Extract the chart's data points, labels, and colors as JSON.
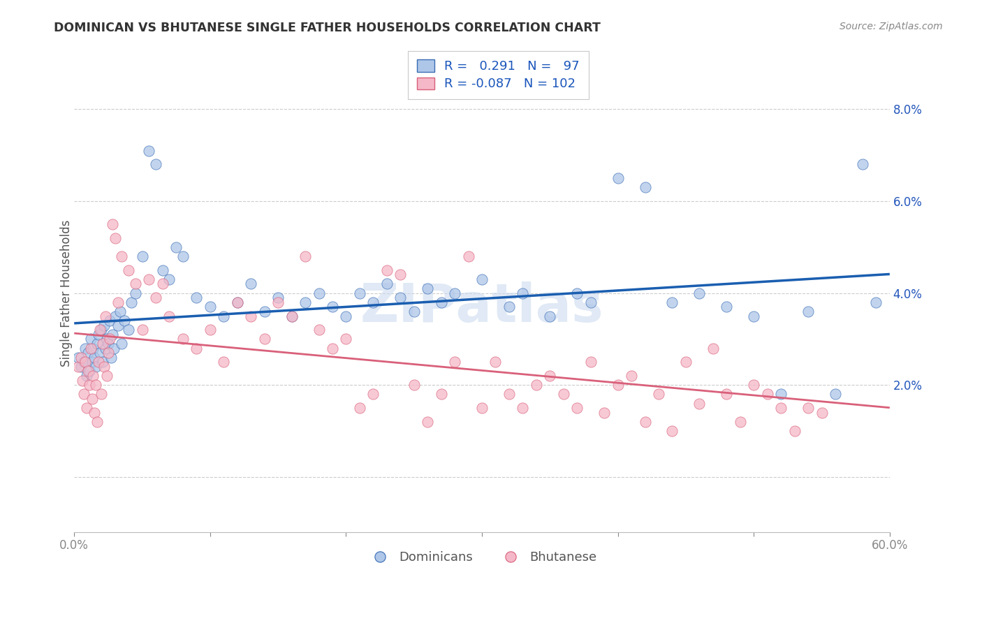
{
  "title": "DOMINICAN VS BHUTANESE SINGLE FATHER HOUSEHOLDS CORRELATION CHART",
  "source": "Source: ZipAtlas.com",
  "ylabel": "Single Father Households",
  "xlim": [
    0.0,
    60.0
  ],
  "ylim": [
    -1.2,
    9.2
  ],
  "ytick_vals": [
    0.0,
    2.0,
    4.0,
    6.0,
    8.0
  ],
  "ytick_labels": [
    "",
    "2.0%",
    "4.0%",
    "6.0%",
    "8.0%"
  ],
  "xtick_vals": [
    0,
    10,
    20,
    30,
    40,
    50,
    60
  ],
  "xtick_labels": [
    "0.0%",
    "",
    "",
    "",
    "",
    "",
    "60.0%"
  ],
  "dominican_R": 0.291,
  "dominican_N": 97,
  "bhutanese_R": -0.087,
  "bhutanese_N": 102,
  "blue_fill": "#aec6e8",
  "blue_edge": "#3a6db5",
  "pink_fill": "#f5b8c8",
  "pink_edge": "#d9607a",
  "blue_trend_color": "#1a5eb0",
  "pink_trend_color": "#d9607a",
  "watermark": "ZIPatlas",
  "legend_label_dominicans": "Dominicans",
  "legend_label_bhutanese": "Bhutanese",
  "grid_color": "#cccccc",
  "dominican_x": [
    0.3,
    0.5,
    0.7,
    0.8,
    0.9,
    1.0,
    1.1,
    1.2,
    1.3,
    1.4,
    1.5,
    1.6,
    1.7,
    1.8,
    1.9,
    2.0,
    2.1,
    2.2,
    2.3,
    2.4,
    2.5,
    2.6,
    2.7,
    2.8,
    2.9,
    3.0,
    3.2,
    3.4,
    3.5,
    3.7,
    4.0,
    4.2,
    4.5,
    5.0,
    5.5,
    6.0,
    6.5,
    7.0,
    7.5,
    8.0,
    9.0,
    10.0,
    11.0,
    12.0,
    13.0,
    14.0,
    15.0,
    16.0,
    17.0,
    18.0,
    19.0,
    20.0,
    21.0,
    22.0,
    23.0,
    24.0,
    25.0,
    26.0,
    27.0,
    28.0,
    30.0,
    32.0,
    33.0,
    35.0,
    37.0,
    38.0,
    40.0,
    42.0,
    44.0,
    46.0,
    48.0,
    50.0,
    52.0,
    54.0,
    56.0,
    58.0,
    59.0
  ],
  "dominican_y": [
    2.6,
    2.4,
    2.5,
    2.8,
    2.2,
    2.7,
    2.3,
    3.0,
    2.5,
    2.8,
    2.6,
    2.4,
    2.9,
    3.1,
    2.7,
    3.2,
    2.5,
    3.3,
    2.8,
    3.0,
    2.9,
    3.4,
    2.6,
    3.1,
    2.8,
    3.5,
    3.3,
    3.6,
    2.9,
    3.4,
    3.2,
    3.8,
    4.0,
    4.8,
    7.1,
    6.8,
    4.5,
    4.3,
    5.0,
    4.8,
    3.9,
    3.7,
    3.5,
    3.8,
    4.2,
    3.6,
    3.9,
    3.5,
    3.8,
    4.0,
    3.7,
    3.5,
    4.0,
    3.8,
    4.2,
    3.9,
    3.6,
    4.1,
    3.8,
    4.0,
    4.3,
    3.7,
    4.0,
    3.5,
    4.0,
    3.8,
    6.5,
    6.3,
    3.8,
    4.0,
    3.7,
    3.5,
    1.8,
    3.6,
    1.8,
    6.8,
    3.8
  ],
  "bhutanese_x": [
    0.3,
    0.5,
    0.6,
    0.7,
    0.8,
    0.9,
    1.0,
    1.1,
    1.2,
    1.3,
    1.4,
    1.5,
    1.6,
    1.7,
    1.8,
    1.9,
    2.0,
    2.1,
    2.2,
    2.3,
    2.4,
    2.5,
    2.6,
    2.8,
    3.0,
    3.2,
    3.5,
    4.0,
    4.5,
    5.0,
    5.5,
    6.0,
    6.5,
    7.0,
    8.0,
    9.0,
    10.0,
    11.0,
    12.0,
    13.0,
    14.0,
    15.0,
    16.0,
    17.0,
    18.0,
    19.0,
    20.0,
    21.0,
    22.0,
    23.0,
    24.0,
    25.0,
    26.0,
    27.0,
    28.0,
    29.0,
    30.0,
    31.0,
    32.0,
    33.0,
    34.0,
    35.0,
    36.0,
    37.0,
    38.0,
    39.0,
    40.0,
    41.0,
    42.0,
    43.0,
    44.0,
    45.0,
    46.0,
    47.0,
    48.0,
    49.0,
    50.0,
    51.0,
    52.0,
    53.0,
    54.0,
    55.0
  ],
  "bhutanese_y": [
    2.4,
    2.6,
    2.1,
    1.8,
    2.5,
    1.5,
    2.3,
    2.0,
    2.8,
    1.7,
    2.2,
    1.4,
    2.0,
    1.2,
    2.5,
    3.2,
    1.8,
    2.9,
    2.4,
    3.5,
    2.2,
    2.7,
    3.0,
    5.5,
    5.2,
    3.8,
    4.8,
    4.5,
    4.2,
    3.2,
    4.3,
    3.9,
    4.2,
    3.5,
    3.0,
    2.8,
    3.2,
    2.5,
    3.8,
    3.5,
    3.0,
    3.8,
    3.5,
    4.8,
    3.2,
    2.8,
    3.0,
    1.5,
    1.8,
    4.5,
    4.4,
    2.0,
    1.2,
    1.8,
    2.5,
    4.8,
    1.5,
    2.5,
    1.8,
    1.5,
    2.0,
    2.2,
    1.8,
    1.5,
    2.5,
    1.4,
    2.0,
    2.2,
    1.2,
    1.8,
    1.0,
    2.5,
    1.6,
    2.8,
    1.8,
    1.2,
    2.0,
    1.8,
    1.5,
    1.0,
    1.5,
    1.4
  ]
}
